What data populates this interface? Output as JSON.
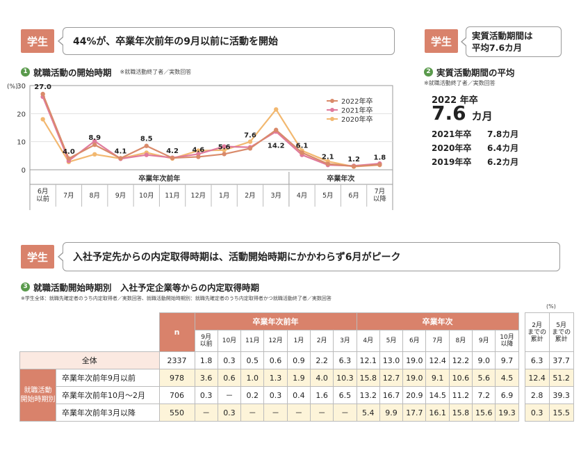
{
  "sections": {
    "top_left": {
      "tag": "学生",
      "headline": "44%が、卒業年次前年の9月以前に活動を開始"
    },
    "top_right": {
      "tag": "学生",
      "headline_line1": "実質活動期間は",
      "headline_line2": "平均7.6カ月"
    },
    "bottom": {
      "tag": "学生",
      "headline": "入社予定先からの内定取得時期は、活動開始時期にかかわらず6月がピーク"
    }
  },
  "chart1": {
    "number": "1",
    "title": "就職活動の開始時期",
    "note": "※就職活動終了者／実数回答"
  },
  "avg": {
    "number": "2",
    "title": "実質活動期間の平均",
    "note": "※就職活動終了者／実数回答",
    "main_label": "2022 年卒",
    "main_value": "7.6",
    "main_unit": "カ月",
    "rows": [
      {
        "year": "2021年卒",
        "value": "7.8カ月"
      },
      {
        "year": "2020年卒",
        "value": "6.4カ月"
      },
      {
        "year": "2019年卒",
        "value": "6.2カ月"
      }
    ]
  },
  "chart_data": [
    {
      "type": "line",
      "y_unit": "(%)",
      "ylim": [
        0,
        30
      ],
      "yticks": [
        "0",
        "10",
        "20",
        "30"
      ],
      "categories": [
        "6月\n以前",
        "7月",
        "8月",
        "9月",
        "10月",
        "11月",
        "12月",
        "1月",
        "2月",
        "3月",
        "4月",
        "5月",
        "6月",
        "7月\n以降"
      ],
      "groups": [
        {
          "label": "卒業年次前年",
          "from": 0,
          "to": 9
        },
        {
          "label": "卒業年次",
          "from": 10,
          "to": 13
        }
      ],
      "legend_position": "top-right",
      "series": [
        {
          "name": "2022年卒",
          "color": "#d98a6a",
          "values": [
            27.0,
            4.0,
            8.9,
            4.1,
            8.5,
            4.2,
            4.6,
            5.6,
            7.6,
            14.2,
            6.1,
            2.1,
            1.2,
            1.8
          ]
        },
        {
          "name": "2021年卒",
          "color": "#e07a9c",
          "values": [
            26.0,
            3.2,
            10.2,
            3.9,
            5.3,
            4.3,
            5.6,
            8.3,
            8.0,
            13.6,
            5.3,
            1.7,
            1.4,
            2.2
          ]
        },
        {
          "name": "2020年卒",
          "color": "#f2b870",
          "values": [
            18.0,
            2.8,
            5.5,
            4.0,
            6.1,
            4.0,
            6.8,
            7.0,
            10.0,
            21.5,
            6.8,
            3.0,
            1.1,
            1.7
          ]
        }
      ],
      "data_labels": [
        "27.0",
        "4.0",
        "8.9",
        "4.1",
        "8.5",
        "4.2",
        "4.6",
        "5.6",
        "7.6",
        "14.2",
        "6.1",
        "2.1",
        "1.2",
        "1.8"
      ]
    },
    {
      "type": "table",
      "number": "3",
      "title": "就職活動開始時期別　入社予定企業等からの内定取得時期",
      "note": "※学生全体：就職先確定者のうち内定取得者／実数回答、就職活動開始時期別：就職先確定者のうち内定取得者かつ就職活動終了者／実数回答",
      "unit": "(%)",
      "group_headers": {
        "n": "n",
        "g1": "卒業年次前年",
        "g2": "卒業年次"
      },
      "columns": [
        "9月\n以前",
        "10月",
        "11月",
        "12月",
        "1月",
        "2月",
        "3月",
        "4月",
        "5月",
        "6月",
        "7月",
        "8月",
        "9月",
        "10月\n以降"
      ],
      "cum_columns": [
        "2月\nまでの\n累計",
        "5月\nまでの\n累計"
      ],
      "row_group_label": "就職活動\n開始時期別",
      "rows": [
        {
          "label": "全体",
          "n": "2337",
          "values": [
            "1.8",
            "0.3",
            "0.5",
            "0.6",
            "0.9",
            "2.2",
            "6.3",
            "12.1",
            "13.0",
            "19.0",
            "12.4",
            "12.2",
            "9.0",
            "9.7"
          ],
          "cum": [
            "6.3",
            "37.7"
          ]
        },
        {
          "label": "卒業年次前年9月以前",
          "n": "978",
          "values": [
            "3.6",
            "0.6",
            "1.0",
            "1.3",
            "1.9",
            "4.0",
            "10.3",
            "15.8",
            "12.7",
            "19.0",
            "9.1",
            "10.6",
            "5.6",
            "4.5"
          ],
          "cum": [
            "12.4",
            "51.2"
          ]
        },
        {
          "label": "卒業年次前年10月～2月",
          "n": "706",
          "values": [
            "0.3",
            "－",
            "0.2",
            "0.3",
            "0.4",
            "1.6",
            "6.5",
            "13.2",
            "16.7",
            "20.9",
            "14.5",
            "11.2",
            "7.2",
            "6.9"
          ],
          "cum": [
            "2.8",
            "39.3"
          ]
        },
        {
          "label": "卒業年次前年3月以降",
          "n": "550",
          "values": [
            "－",
            "0.3",
            "－",
            "－",
            "－",
            "－",
            "－",
            "5.4",
            "9.9",
            "17.7",
            "16.1",
            "15.8",
            "15.6",
            "19.3"
          ],
          "cum": [
            "0.3",
            "15.5"
          ]
        }
      ],
      "colors": {
        "header": "#d9826b",
        "highlight": "#fdf4d9"
      }
    }
  ]
}
